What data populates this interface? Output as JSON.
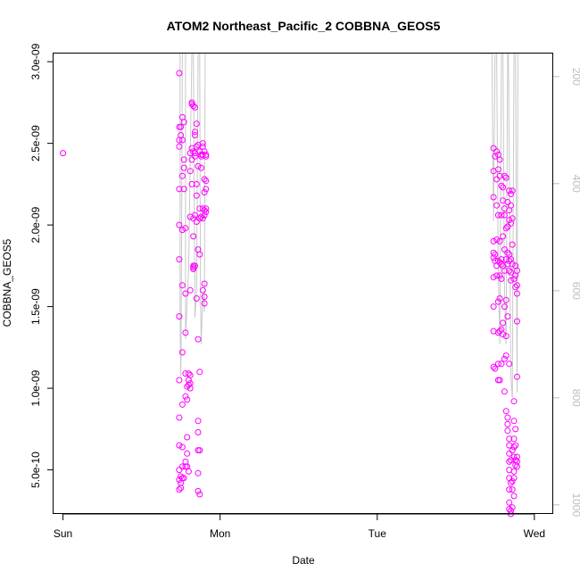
{
  "chart_data": {
    "type": "scatter",
    "title": "ATOM2 Northeast_Pacific_2 COBBNA_GEOS5",
    "xlabel": "Date",
    "ylabel": "COBBNA_GEOS5",
    "x_ticks": [
      {
        "label": "Sun",
        "day": 0
      },
      {
        "label": "Mon",
        "day": 1
      },
      {
        "label": "Tue",
        "day": 2
      },
      {
        "label": "Wed",
        "day": 3
      }
    ],
    "xlim": [
      -0.06,
      3.12
    ],
    "ylim": [
      2.3e-10,
      3.05e-09
    ],
    "y_ticks": [
      {
        "label": "5.0e-10",
        "value": 5e-10
      },
      {
        "label": "1.0e-09",
        "value": 1e-09
      },
      {
        "label": "1.5e-09",
        "value": 1.5e-09
      },
      {
        "label": "2.0e-09",
        "value": 2e-09
      },
      {
        "label": "2.5e-09",
        "value": 2.5e-09
      },
      {
        "label": "3.0e-09",
        "value": 3e-09
      }
    ],
    "y2_ticks": [
      {
        "label": "200",
        "value": 200
      },
      {
        "label": "400",
        "value": 400
      },
      {
        "label": "600",
        "value": 600
      },
      {
        "label": "800",
        "value": 800
      },
      {
        "label": "1000",
        "value": 1000
      }
    ],
    "y2lim": [
      1017,
      157
    ],
    "colors": {
      "points": "#ff00ff",
      "pressure_line": "#c8c8c8",
      "right_axis": "#bdbdbd"
    },
    "series": [
      {
        "points": [
          [
            0.0,
            2.44e-09
          ],
          [
            0.74,
            2.93e-09
          ],
          [
            0.74,
            2.6e-09
          ],
          [
            0.74,
            2.52e-09
          ],
          [
            0.74,
            2.48e-09
          ],
          [
            0.74,
            2.22e-09
          ],
          [
            0.74,
            2e-09
          ],
          [
            0.74,
            1.79e-09
          ],
          [
            0.74,
            1.44e-09
          ],
          [
            0.74,
            1.05e-09
          ],
          [
            0.74,
            8.2e-10
          ],
          [
            0.74,
            6.5e-10
          ],
          [
            0.74,
            5e-10
          ],
          [
            0.74,
            4.4e-10
          ],
          [
            0.74,
            3.8e-10
          ],
          [
            0.75,
            2.6e-09
          ],
          [
            0.75,
            2.55e-09
          ],
          [
            0.75,
            4.6e-10
          ],
          [
            0.75,
            4.2e-10
          ],
          [
            0.75,
            3.9e-10
          ],
          [
            0.76,
            2.66e-09
          ],
          [
            0.76,
            2.52e-09
          ],
          [
            0.76,
            2.3e-09
          ],
          [
            0.76,
            1.97e-09
          ],
          [
            0.76,
            1.63e-09
          ],
          [
            0.76,
            1.22e-09
          ],
          [
            0.76,
            9e-10
          ],
          [
            0.76,
            6.4e-10
          ],
          [
            0.76,
            5.2e-10
          ],
          [
            0.76,
            4.5e-10
          ],
          [
            0.77,
            2.63e-09
          ],
          [
            0.77,
            2.4e-09
          ],
          [
            0.77,
            2.35e-09
          ],
          [
            0.77,
            2.22e-09
          ],
          [
            0.77,
            4.5e-10
          ],
          [
            0.78,
            1.98e-09
          ],
          [
            0.78,
            1.58e-09
          ],
          [
            0.78,
            1.34e-09
          ],
          [
            0.78,
            1.09e-09
          ],
          [
            0.78,
            9.5e-10
          ],
          [
            0.78,
            5.5e-10
          ],
          [
            0.78,
            5.2e-10
          ],
          [
            0.79,
            1.01e-09
          ],
          [
            0.79,
            9.3e-10
          ],
          [
            0.79,
            7e-10
          ],
          [
            0.79,
            6e-10
          ],
          [
            0.79,
            5.2e-10
          ],
          [
            0.8,
            1.09e-09
          ],
          [
            0.8,
            1.05e-09
          ],
          [
            0.8,
            1.02e-09
          ],
          [
            0.8,
            4.9e-10
          ],
          [
            0.81,
            2.44e-09
          ],
          [
            0.81,
            2.33e-09
          ],
          [
            0.81,
            2.05e-09
          ],
          [
            0.81,
            1.6e-09
          ],
          [
            0.81,
            1.08e-09
          ],
          [
            0.81,
            1.03e-09
          ],
          [
            0.81,
            1e-09
          ],
          [
            0.82,
            2.75e-09
          ],
          [
            0.82,
            2.74e-09
          ],
          [
            0.82,
            2.47e-09
          ],
          [
            0.82,
            2.4e-09
          ],
          [
            0.82,
            2.25e-09
          ],
          [
            0.83,
            2.73e-09
          ],
          [
            0.83,
            2.45e-09
          ],
          [
            0.83,
            2.04e-09
          ],
          [
            0.83,
            1.75e-09
          ],
          [
            0.83,
            1.74e-09
          ],
          [
            0.83,
            1.73e-09
          ],
          [
            0.83,
            1.93e-09
          ],
          [
            0.84,
            2.72e-09
          ],
          [
            0.84,
            2.57e-09
          ],
          [
            0.84,
            2.55e-09
          ],
          [
            0.84,
            2.44e-09
          ],
          [
            0.84,
            2.42e-09
          ],
          [
            0.84,
            2.06e-09
          ],
          [
            0.84,
            1.75e-09
          ],
          [
            0.85,
            2.62e-09
          ],
          [
            0.85,
            2.48e-09
          ],
          [
            0.85,
            2.25e-09
          ],
          [
            0.85,
            2.18e-09
          ],
          [
            0.85,
            2.02e-09
          ],
          [
            0.85,
            1.55e-09
          ],
          [
            0.86,
            2.49e-09
          ],
          [
            0.86,
            2.36e-09
          ],
          [
            0.86,
            1.85e-09
          ],
          [
            0.86,
            1.3e-09
          ],
          [
            0.86,
            8e-10
          ],
          [
            0.86,
            7.3e-10
          ],
          [
            0.86,
            6.2e-10
          ],
          [
            0.86,
            4.8e-10
          ],
          [
            0.86,
            3.7e-10
          ],
          [
            0.87,
            2.45e-09
          ],
          [
            0.87,
            2.1e-09
          ],
          [
            0.87,
            2.04e-09
          ],
          [
            0.87,
            1.82e-09
          ],
          [
            0.87,
            1.1e-09
          ],
          [
            0.87,
            6.2e-10
          ],
          [
            0.87,
            3.5e-10
          ],
          [
            0.88,
            2.43e-09
          ],
          [
            0.88,
            2.42e-09
          ],
          [
            0.88,
            2.35e-09
          ],
          [
            0.88,
            2.05e-09
          ],
          [
            0.89,
            2.5e-09
          ],
          [
            0.89,
            2.48e-09
          ],
          [
            0.89,
            2.43e-09
          ],
          [
            0.89,
            2.1e-09
          ],
          [
            0.89,
            2.04e-09
          ],
          [
            0.89,
            1.6e-09
          ],
          [
            0.9,
            2.45e-09
          ],
          [
            0.9,
            2.28e-09
          ],
          [
            0.9,
            2.2e-09
          ],
          [
            0.9,
            2.09e-09
          ],
          [
            0.9,
            2.06e-09
          ],
          [
            0.9,
            1.64e-09
          ],
          [
            0.9,
            1.56e-09
          ],
          [
            0.9,
            1.52e-09
          ],
          [
            0.91,
            2.43e-09
          ],
          [
            0.91,
            2.42e-09
          ],
          [
            0.91,
            2.27e-09
          ],
          [
            0.91,
            2.22e-09
          ],
          [
            0.91,
            2.1e-09
          ],
          [
            0.91,
            2.08e-09
          ],
          [
            2.74,
            2.47e-09
          ],
          [
            2.74,
            2.33e-09
          ],
          [
            2.74,
            2.17e-09
          ],
          [
            2.74,
            1.9e-09
          ],
          [
            2.74,
            1.83e-09
          ],
          [
            2.74,
            1.8e-09
          ],
          [
            2.74,
            1.68e-09
          ],
          [
            2.74,
            1.5e-09
          ],
          [
            2.74,
            1.35e-09
          ],
          [
            2.74,
            1.13e-09
          ],
          [
            2.75,
            2.42e-09
          ],
          [
            2.75,
            1.82e-09
          ],
          [
            2.75,
            1.78e-09
          ],
          [
            2.75,
            1.12e-09
          ],
          [
            2.76,
            2.45e-09
          ],
          [
            2.76,
            2.28e-09
          ],
          [
            2.76,
            2.12e-09
          ],
          [
            2.76,
            1.91e-09
          ],
          [
            2.76,
            1.75e-09
          ],
          [
            2.76,
            1.69e-09
          ],
          [
            2.77,
            2.43e-09
          ],
          [
            2.77,
            2.34e-09
          ],
          [
            2.77,
            2.06e-09
          ],
          [
            2.77,
            1.78e-09
          ],
          [
            2.77,
            1.53e-09
          ],
          [
            2.77,
            1.34e-09
          ],
          [
            2.77,
            1.15e-09
          ],
          [
            2.77,
            1.05e-09
          ],
          [
            2.78,
            2.4e-09
          ],
          [
            2.78,
            2.3e-09
          ],
          [
            2.78,
            1.9e-09
          ],
          [
            2.78,
            1.77e-09
          ],
          [
            2.78,
            1.69e-09
          ],
          [
            2.78,
            1.55e-09
          ],
          [
            2.78,
            1.35e-09
          ],
          [
            2.78,
            1.05e-09
          ],
          [
            2.79,
            2.24e-09
          ],
          [
            2.79,
            2.06e-09
          ],
          [
            2.79,
            1.79e-09
          ],
          [
            2.79,
            1.76e-09
          ],
          [
            2.79,
            1.67e-09
          ],
          [
            2.79,
            1.36e-09
          ],
          [
            2.79,
            1.15e-09
          ],
          [
            2.8,
            2.23e-09
          ],
          [
            2.8,
            2.15e-09
          ],
          [
            2.8,
            1.93e-09
          ],
          [
            2.8,
            1.75e-09
          ],
          [
            2.8,
            1.4e-09
          ],
          [
            2.8,
            1.33e-09
          ],
          [
            2.81,
            2.3e-09
          ],
          [
            2.81,
            2.1e-09
          ],
          [
            2.81,
            2.06e-09
          ],
          [
            2.81,
            1.85e-09
          ],
          [
            2.81,
            1.72e-09
          ],
          [
            2.81,
            1.5e-09
          ],
          [
            2.81,
            1.18e-09
          ],
          [
            2.81,
            9.8e-10
          ],
          [
            2.82,
            2.29e-09
          ],
          [
            2.82,
            1.98e-09
          ],
          [
            2.82,
            1.79e-09
          ],
          [
            2.82,
            1.54e-09
          ],
          [
            2.82,
            1.32e-09
          ],
          [
            2.82,
            1.2e-09
          ],
          [
            2.82,
            8.6e-10
          ],
          [
            2.83,
            2.14e-09
          ],
          [
            2.83,
            1.99e-09
          ],
          [
            2.83,
            1.83e-09
          ],
          [
            2.83,
            1.76e-09
          ],
          [
            2.83,
            1.44e-09
          ],
          [
            2.83,
            8.2e-10
          ],
          [
            2.83,
            7.8e-10
          ],
          [
            2.83,
            7.4e-10
          ],
          [
            2.84,
            2.21e-09
          ],
          [
            2.84,
            2.09e-09
          ],
          [
            2.84,
            2.03e-09
          ],
          [
            2.84,
            1.82e-09
          ],
          [
            2.84,
            1.78e-09
          ],
          [
            2.84,
            1.72e-09
          ],
          [
            2.84,
            1.15e-09
          ],
          [
            2.84,
            6.9e-10
          ],
          [
            2.84,
            6.5e-10
          ],
          [
            2.84,
            6e-10
          ],
          [
            2.84,
            5.5e-10
          ],
          [
            2.84,
            5e-10
          ],
          [
            2.84,
            4.5e-10
          ],
          [
            2.84,
            3.8e-10
          ],
          [
            2.84,
            3e-10
          ],
          [
            2.84,
            2.6e-10
          ],
          [
            2.85,
            2.19e-09
          ],
          [
            2.85,
            2.12e-09
          ],
          [
            2.85,
            2.01e-09
          ],
          [
            2.85,
            1.79e-09
          ],
          [
            2.85,
            1.71e-09
          ],
          [
            2.85,
            1.66e-09
          ],
          [
            2.85,
            5.6e-10
          ],
          [
            2.85,
            4.2e-10
          ],
          [
            2.85,
            2.5e-10
          ],
          [
            2.85,
            2.3e-10
          ],
          [
            2.86,
            2.21e-09
          ],
          [
            2.86,
            2.04e-09
          ],
          [
            2.86,
            1.88e-09
          ],
          [
            2.86,
            1.76e-09
          ],
          [
            2.86,
            6.2e-10
          ],
          [
            2.86,
            4.3e-10
          ],
          [
            2.86,
            3.8e-10
          ],
          [
            2.86,
            2.7e-10
          ],
          [
            2.87,
            1.67e-09
          ],
          [
            2.87,
            9.2e-10
          ],
          [
            2.87,
            8e-10
          ],
          [
            2.87,
            6.9e-10
          ],
          [
            2.87,
            6.4e-10
          ],
          [
            2.87,
            5.8e-10
          ],
          [
            2.87,
            4.9e-10
          ],
          [
            2.87,
            4.5e-10
          ],
          [
            2.87,
            3.4e-10
          ],
          [
            2.88,
            1.75e-09
          ],
          [
            2.88,
            1.69e-09
          ],
          [
            2.88,
            1.62e-09
          ],
          [
            2.88,
            7.5e-10
          ],
          [
            2.88,
            6.5e-10
          ],
          [
            2.88,
            5.6e-10
          ],
          [
            2.88,
            5.3e-10
          ],
          [
            2.89,
            1.72e-09
          ],
          [
            2.89,
            1.63e-09
          ],
          [
            2.89,
            1.58e-09
          ],
          [
            2.89,
            1.41e-09
          ],
          [
            2.89,
            1.07e-09
          ],
          [
            2.89,
            5.8e-10
          ],
          [
            2.89,
            5.5e-10
          ],
          [
            2.89,
            5.2e-10
          ]
        ]
      }
    ]
  }
}
